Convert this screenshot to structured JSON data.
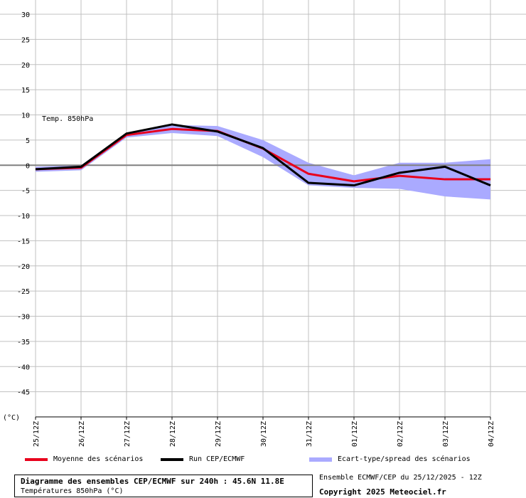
{
  "colors": {
    "mean": "#e8001c",
    "run": "#000000",
    "spread": "#aaaaff",
    "grid": "#c0c0c0",
    "zero": "#808080"
  },
  "legend": {
    "mean_label": "Moyenne des scénarios",
    "run_label": "Run CEP/ECMWF",
    "spread_label": "Ecart-type/spread des scénarios"
  },
  "footer": {
    "title": "Diagramme des ensembles CEP/ECMWF sur 240h : 45.6N 11.8E",
    "subtitle": "Températures 850hPa (°C)",
    "run_info": "Ensemble ECMWF/CEP du 25/12/2025 - 12Z",
    "copyright": "Copyright 2025 Meteociel.fr"
  },
  "chart_data": {
    "type": "line",
    "inner_label": "Temp. 850hPa",
    "ylabel": "(°C)",
    "ylim": [
      -50,
      30
    ],
    "yticks": [
      30,
      25,
      20,
      15,
      10,
      5,
      0,
      -5,
      -10,
      -15,
      -20,
      -25,
      -30,
      -35,
      -40,
      -45
    ],
    "grid": true,
    "categories": [
      "25/12Z",
      "26/12Z",
      "27/12Z",
      "28/12Z",
      "29/12Z",
      "30/12Z",
      "31/12Z",
      "01/12Z",
      "02/12Z",
      "03/12Z",
      "04/12Z"
    ],
    "series": [
      {
        "name": "Moyenne des scénarios",
        "values": [
          -0.8,
          -0.5,
          6.0,
          7.2,
          6.8,
          3.3,
          -1.7,
          -3.2,
          -2.1,
          -2.8,
          -2.8
        ]
      },
      {
        "name": "Run CEP/ECMWF",
        "values": [
          -0.8,
          -0.3,
          6.3,
          8.1,
          6.7,
          3.4,
          -3.5,
          -4.0,
          -1.5,
          -0.3,
          -4.0
        ]
      }
    ],
    "spread": {
      "name": "Ecart-type/spread des scénarios",
      "upper": [
        -0.3,
        0.0,
        6.5,
        8.0,
        7.8,
        5.0,
        0.5,
        -2.0,
        0.5,
        0.5,
        1.2
      ],
      "lower": [
        -1.3,
        -1.0,
        5.5,
        6.4,
        5.8,
        1.6,
        -4.0,
        -4.5,
        -4.7,
        -6.2,
        -6.8
      ]
    }
  }
}
